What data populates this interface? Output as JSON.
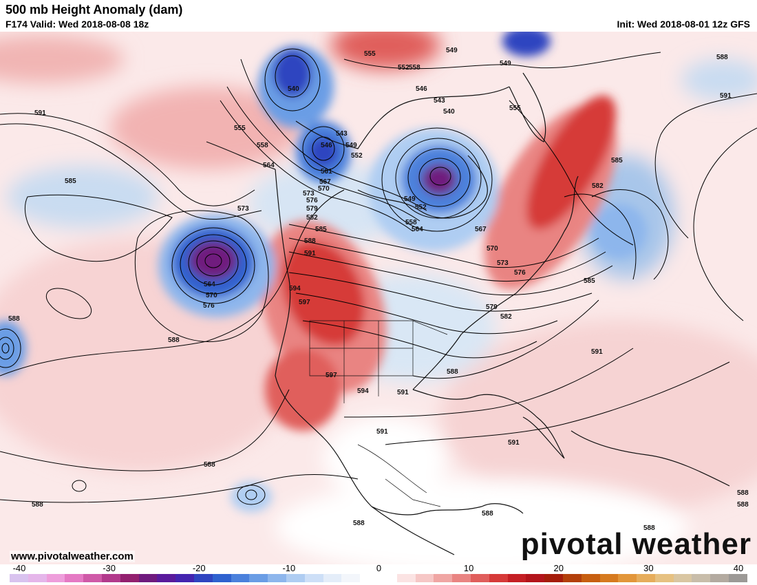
{
  "header": {
    "title": "500 mb Height Anomaly (dam)",
    "valid": "F174 Valid: Wed 2018-08-08 18z",
    "init": "Init: Wed 2018-08-01 12z GFS"
  },
  "footer": {
    "credit": "www.pivotalweather.com",
    "brand": "pivotal weather"
  },
  "colorbar": {
    "min": -40,
    "max": 40,
    "tick_labels": [
      "-40",
      "-30",
      "-20",
      "-10",
      "0",
      "10",
      "20",
      "30",
      "40"
    ],
    "colors": [
      "#d9c3ef",
      "#e5b6ea",
      "#ee9edb",
      "#e57ac4",
      "#cf5aa8",
      "#b23a8c",
      "#93206f",
      "#6f1a7e",
      "#5a1a9c",
      "#4424b0",
      "#2f44c0",
      "#2f62cf",
      "#4b81dc",
      "#6a9de5",
      "#8db6ec",
      "#afcdf2",
      "#cddff7",
      "#e4edf9",
      "#f3f6fb",
      "#ffffff",
      "#ffffff",
      "#fbe3e3",
      "#f6c7c6",
      "#f0a6a4",
      "#e98482",
      "#e05e5c",
      "#d63a39",
      "#c51f24",
      "#b3141b",
      "#a51d0b",
      "#b3400b",
      "#c75f10",
      "#d67a1f",
      "#e2963a",
      "#e6ad5c",
      "#e6c181",
      "#d9c6a2",
      "#c8bdaa",
      "#b3aaa0",
      "#9c9996"
    ]
  },
  "contour_labels": {
    "west_pacific": [
      "591",
      "585",
      "573",
      "588",
      "588",
      "588",
      "588",
      "588"
    ],
    "low_pacific": [
      "564",
      "570",
      "576"
    ],
    "alaska": [
      "540",
      "555",
      "558",
      "564",
      "546",
      "549",
      "552",
      "543",
      "561"
    ],
    "canada_low": [
      "555",
      "549",
      "552",
      "546",
      "543",
      "540",
      "549",
      "552",
      "558",
      "564"
    ],
    "west_ridge": [
      "567",
      "570",
      "573",
      "576",
      "579",
      "582",
      "585",
      "588",
      "591",
      "594",
      "597",
      "594",
      "597"
    ],
    "east": [
      "567",
      "570",
      "573",
      "576",
      "579",
      "582",
      "588",
      "591",
      "591",
      "591",
      "588",
      "588"
    ],
    "atlantic": [
      "582",
      "585",
      "585",
      "591",
      "591",
      "588",
      "549",
      "588",
      "558",
      "555",
      "588"
    ]
  }
}
